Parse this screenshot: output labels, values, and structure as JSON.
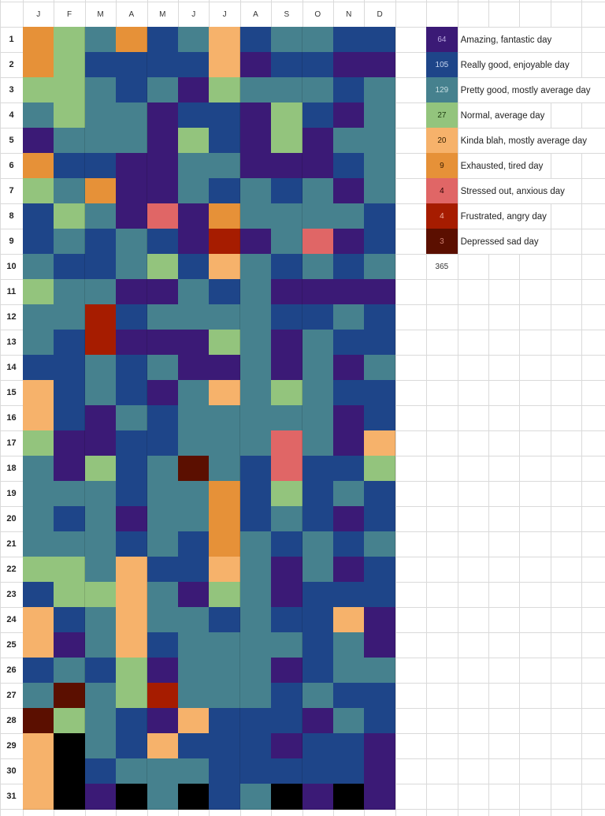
{
  "months": [
    "J",
    "F",
    "M",
    "A",
    "M",
    "J",
    "J",
    "A",
    "S",
    "O",
    "N",
    "D"
  ],
  "days": [
    "1",
    "2",
    "3",
    "4",
    "5",
    "6",
    "7",
    "8",
    "9",
    "10",
    "11",
    "12",
    "13",
    "14",
    "15",
    "16",
    "17",
    "18",
    "19",
    "20",
    "21",
    "22",
    "23",
    "24",
    "25",
    "26",
    "27",
    "28",
    "29",
    "30",
    "31"
  ],
  "moods": {
    "amazing": {
      "color": "#3b1a76",
      "label": "Amazing, fantastic day",
      "count": "64",
      "text_color": "#b9a8e0"
    },
    "really_good": {
      "color": "#1e4589",
      "label": "Really good, enjoyable day",
      "count": "105",
      "text_color": "#c7d6f0"
    },
    "pretty_good": {
      "color": "#46818e",
      "label": "Pretty good, mostly average day",
      "count": "129",
      "text_color": "#c9dfe3"
    },
    "normal": {
      "color": "#93c47d",
      "label": "Normal, average day",
      "count": "27",
      "text_color": "#1d3a10"
    },
    "blah": {
      "color": "#f6b26b",
      "label": "Kinda blah, mostly average day",
      "count": "20",
      "text_color": "#3a2200"
    },
    "exhausted": {
      "color": "#e69138",
      "label": "Exhausted, tired day",
      "count": "9",
      "text_color": "#3a1e00"
    },
    "stressed": {
      "color": "#e06666",
      "label": "Stressed out, anxious day",
      "count": "4",
      "text_color": "#2a0000"
    },
    "frustrated": {
      "color": "#a61c00",
      "label": "Frustrated, angry day",
      "count": "4",
      "text_color": "#f0b0a0"
    },
    "depressed": {
      "color": "#5b0f00",
      "label": "Depressed sad day",
      "count": "3",
      "text_color": "#d08070"
    },
    "none": {
      "color": "#000000"
    }
  },
  "legend_order": [
    "amazing",
    "really_good",
    "pretty_good",
    "normal",
    "blah",
    "exhausted",
    "stressed",
    "frustrated",
    "depressed"
  ],
  "total": "365",
  "grid": [
    [
      "exhausted",
      "normal",
      "pretty_good",
      "exhausted",
      "really_good",
      "pretty_good",
      "blah",
      "really_good",
      "pretty_good",
      "pretty_good",
      "really_good",
      "really_good"
    ],
    [
      "exhausted",
      "normal",
      "really_good",
      "really_good",
      "really_good",
      "really_good",
      "blah",
      "amazing",
      "really_good",
      "really_good",
      "amazing",
      "amazing"
    ],
    [
      "normal",
      "normal",
      "pretty_good",
      "really_good",
      "pretty_good",
      "amazing",
      "normal",
      "pretty_good",
      "pretty_good",
      "pretty_good",
      "really_good",
      "pretty_good"
    ],
    [
      "pretty_good",
      "normal",
      "pretty_good",
      "pretty_good",
      "amazing",
      "really_good",
      "really_good",
      "amazing",
      "normal",
      "really_good",
      "amazing",
      "pretty_good"
    ],
    [
      "amazing",
      "pretty_good",
      "pretty_good",
      "pretty_good",
      "amazing",
      "normal",
      "really_good",
      "amazing",
      "normal",
      "amazing",
      "pretty_good",
      "pretty_good"
    ],
    [
      "exhausted",
      "really_good",
      "really_good",
      "amazing",
      "amazing",
      "pretty_good",
      "pretty_good",
      "amazing",
      "amazing",
      "amazing",
      "really_good",
      "pretty_good"
    ],
    [
      "normal",
      "pretty_good",
      "exhausted",
      "amazing",
      "amazing",
      "pretty_good",
      "really_good",
      "pretty_good",
      "really_good",
      "pretty_good",
      "amazing",
      "pretty_good"
    ],
    [
      "really_good",
      "normal",
      "pretty_good",
      "amazing",
      "stressed",
      "amazing",
      "exhausted",
      "pretty_good",
      "pretty_good",
      "pretty_good",
      "pretty_good",
      "really_good"
    ],
    [
      "really_good",
      "pretty_good",
      "really_good",
      "pretty_good",
      "really_good",
      "amazing",
      "frustrated",
      "amazing",
      "pretty_good",
      "stressed",
      "amazing",
      "really_good"
    ],
    [
      "pretty_good",
      "really_good",
      "really_good",
      "pretty_good",
      "normal",
      "really_good",
      "blah",
      "pretty_good",
      "really_good",
      "pretty_good",
      "really_good",
      "pretty_good"
    ],
    [
      "normal",
      "pretty_good",
      "pretty_good",
      "amazing",
      "amazing",
      "pretty_good",
      "really_good",
      "pretty_good",
      "amazing",
      "amazing",
      "amazing",
      "amazing"
    ],
    [
      "pretty_good",
      "pretty_good",
      "frustrated",
      "really_good",
      "pretty_good",
      "pretty_good",
      "pretty_good",
      "pretty_good",
      "really_good",
      "really_good",
      "pretty_good",
      "really_good"
    ],
    [
      "pretty_good",
      "really_good",
      "frustrated",
      "amazing",
      "amazing",
      "amazing",
      "normal",
      "pretty_good",
      "amazing",
      "pretty_good",
      "really_good",
      "really_good"
    ],
    [
      "really_good",
      "really_good",
      "pretty_good",
      "really_good",
      "pretty_good",
      "amazing",
      "amazing",
      "pretty_good",
      "amazing",
      "pretty_good",
      "amazing",
      "pretty_good"
    ],
    [
      "blah",
      "really_good",
      "pretty_good",
      "really_good",
      "amazing",
      "pretty_good",
      "blah",
      "pretty_good",
      "normal",
      "pretty_good",
      "really_good",
      "really_good"
    ],
    [
      "blah",
      "really_good",
      "amazing",
      "pretty_good",
      "really_good",
      "pretty_good",
      "pretty_good",
      "pretty_good",
      "pretty_good",
      "pretty_good",
      "amazing",
      "really_good"
    ],
    [
      "normal",
      "amazing",
      "amazing",
      "really_good",
      "really_good",
      "pretty_good",
      "pretty_good",
      "pretty_good",
      "stressed",
      "pretty_good",
      "amazing",
      "blah"
    ],
    [
      "pretty_good",
      "amazing",
      "normal",
      "really_good",
      "pretty_good",
      "depressed",
      "pretty_good",
      "really_good",
      "stressed",
      "really_good",
      "really_good",
      "normal"
    ],
    [
      "pretty_good",
      "pretty_good",
      "pretty_good",
      "really_good",
      "pretty_good",
      "pretty_good",
      "exhausted",
      "really_good",
      "normal",
      "really_good",
      "pretty_good",
      "really_good"
    ],
    [
      "pretty_good",
      "really_good",
      "pretty_good",
      "amazing",
      "pretty_good",
      "pretty_good",
      "exhausted",
      "really_good",
      "pretty_good",
      "really_good",
      "amazing",
      "really_good"
    ],
    [
      "pretty_good",
      "pretty_good",
      "pretty_good",
      "really_good",
      "pretty_good",
      "really_good",
      "exhausted",
      "pretty_good",
      "really_good",
      "pretty_good",
      "really_good",
      "pretty_good"
    ],
    [
      "normal",
      "normal",
      "pretty_good",
      "blah",
      "really_good",
      "really_good",
      "blah",
      "pretty_good",
      "amazing",
      "pretty_good",
      "amazing",
      "really_good"
    ],
    [
      "really_good",
      "normal",
      "normal",
      "blah",
      "pretty_good",
      "amazing",
      "normal",
      "pretty_good",
      "amazing",
      "really_good",
      "really_good",
      "really_good"
    ],
    [
      "blah",
      "really_good",
      "pretty_good",
      "blah",
      "pretty_good",
      "pretty_good",
      "really_good",
      "pretty_good",
      "really_good",
      "really_good",
      "blah",
      "amazing"
    ],
    [
      "blah",
      "amazing",
      "pretty_good",
      "blah",
      "really_good",
      "pretty_good",
      "pretty_good",
      "pretty_good",
      "pretty_good",
      "really_good",
      "pretty_good",
      "amazing"
    ],
    [
      "really_good",
      "pretty_good",
      "really_good",
      "normal",
      "amazing",
      "pretty_good",
      "pretty_good",
      "pretty_good",
      "amazing",
      "really_good",
      "pretty_good",
      "pretty_good"
    ],
    [
      "pretty_good",
      "depressed",
      "pretty_good",
      "normal",
      "frustrated",
      "pretty_good",
      "pretty_good",
      "pretty_good",
      "really_good",
      "pretty_good",
      "really_good",
      "really_good"
    ],
    [
      "depressed",
      "normal",
      "pretty_good",
      "really_good",
      "amazing",
      "blah",
      "really_good",
      "really_good",
      "really_good",
      "amazing",
      "pretty_good",
      "really_good"
    ],
    [
      "blah",
      "none",
      "pretty_good",
      "really_good",
      "blah",
      "really_good",
      "really_good",
      "really_good",
      "amazing",
      "really_good",
      "really_good",
      "amazing"
    ],
    [
      "blah",
      "none",
      "really_good",
      "pretty_good",
      "pretty_good",
      "pretty_good",
      "really_good",
      "really_good",
      "really_good",
      "really_good",
      "really_good",
      "amazing"
    ],
    [
      "blah",
      "none",
      "amazing",
      "none",
      "pretty_good",
      "none",
      "really_good",
      "pretty_good",
      "none",
      "amazing",
      "none",
      "amazing"
    ]
  ]
}
